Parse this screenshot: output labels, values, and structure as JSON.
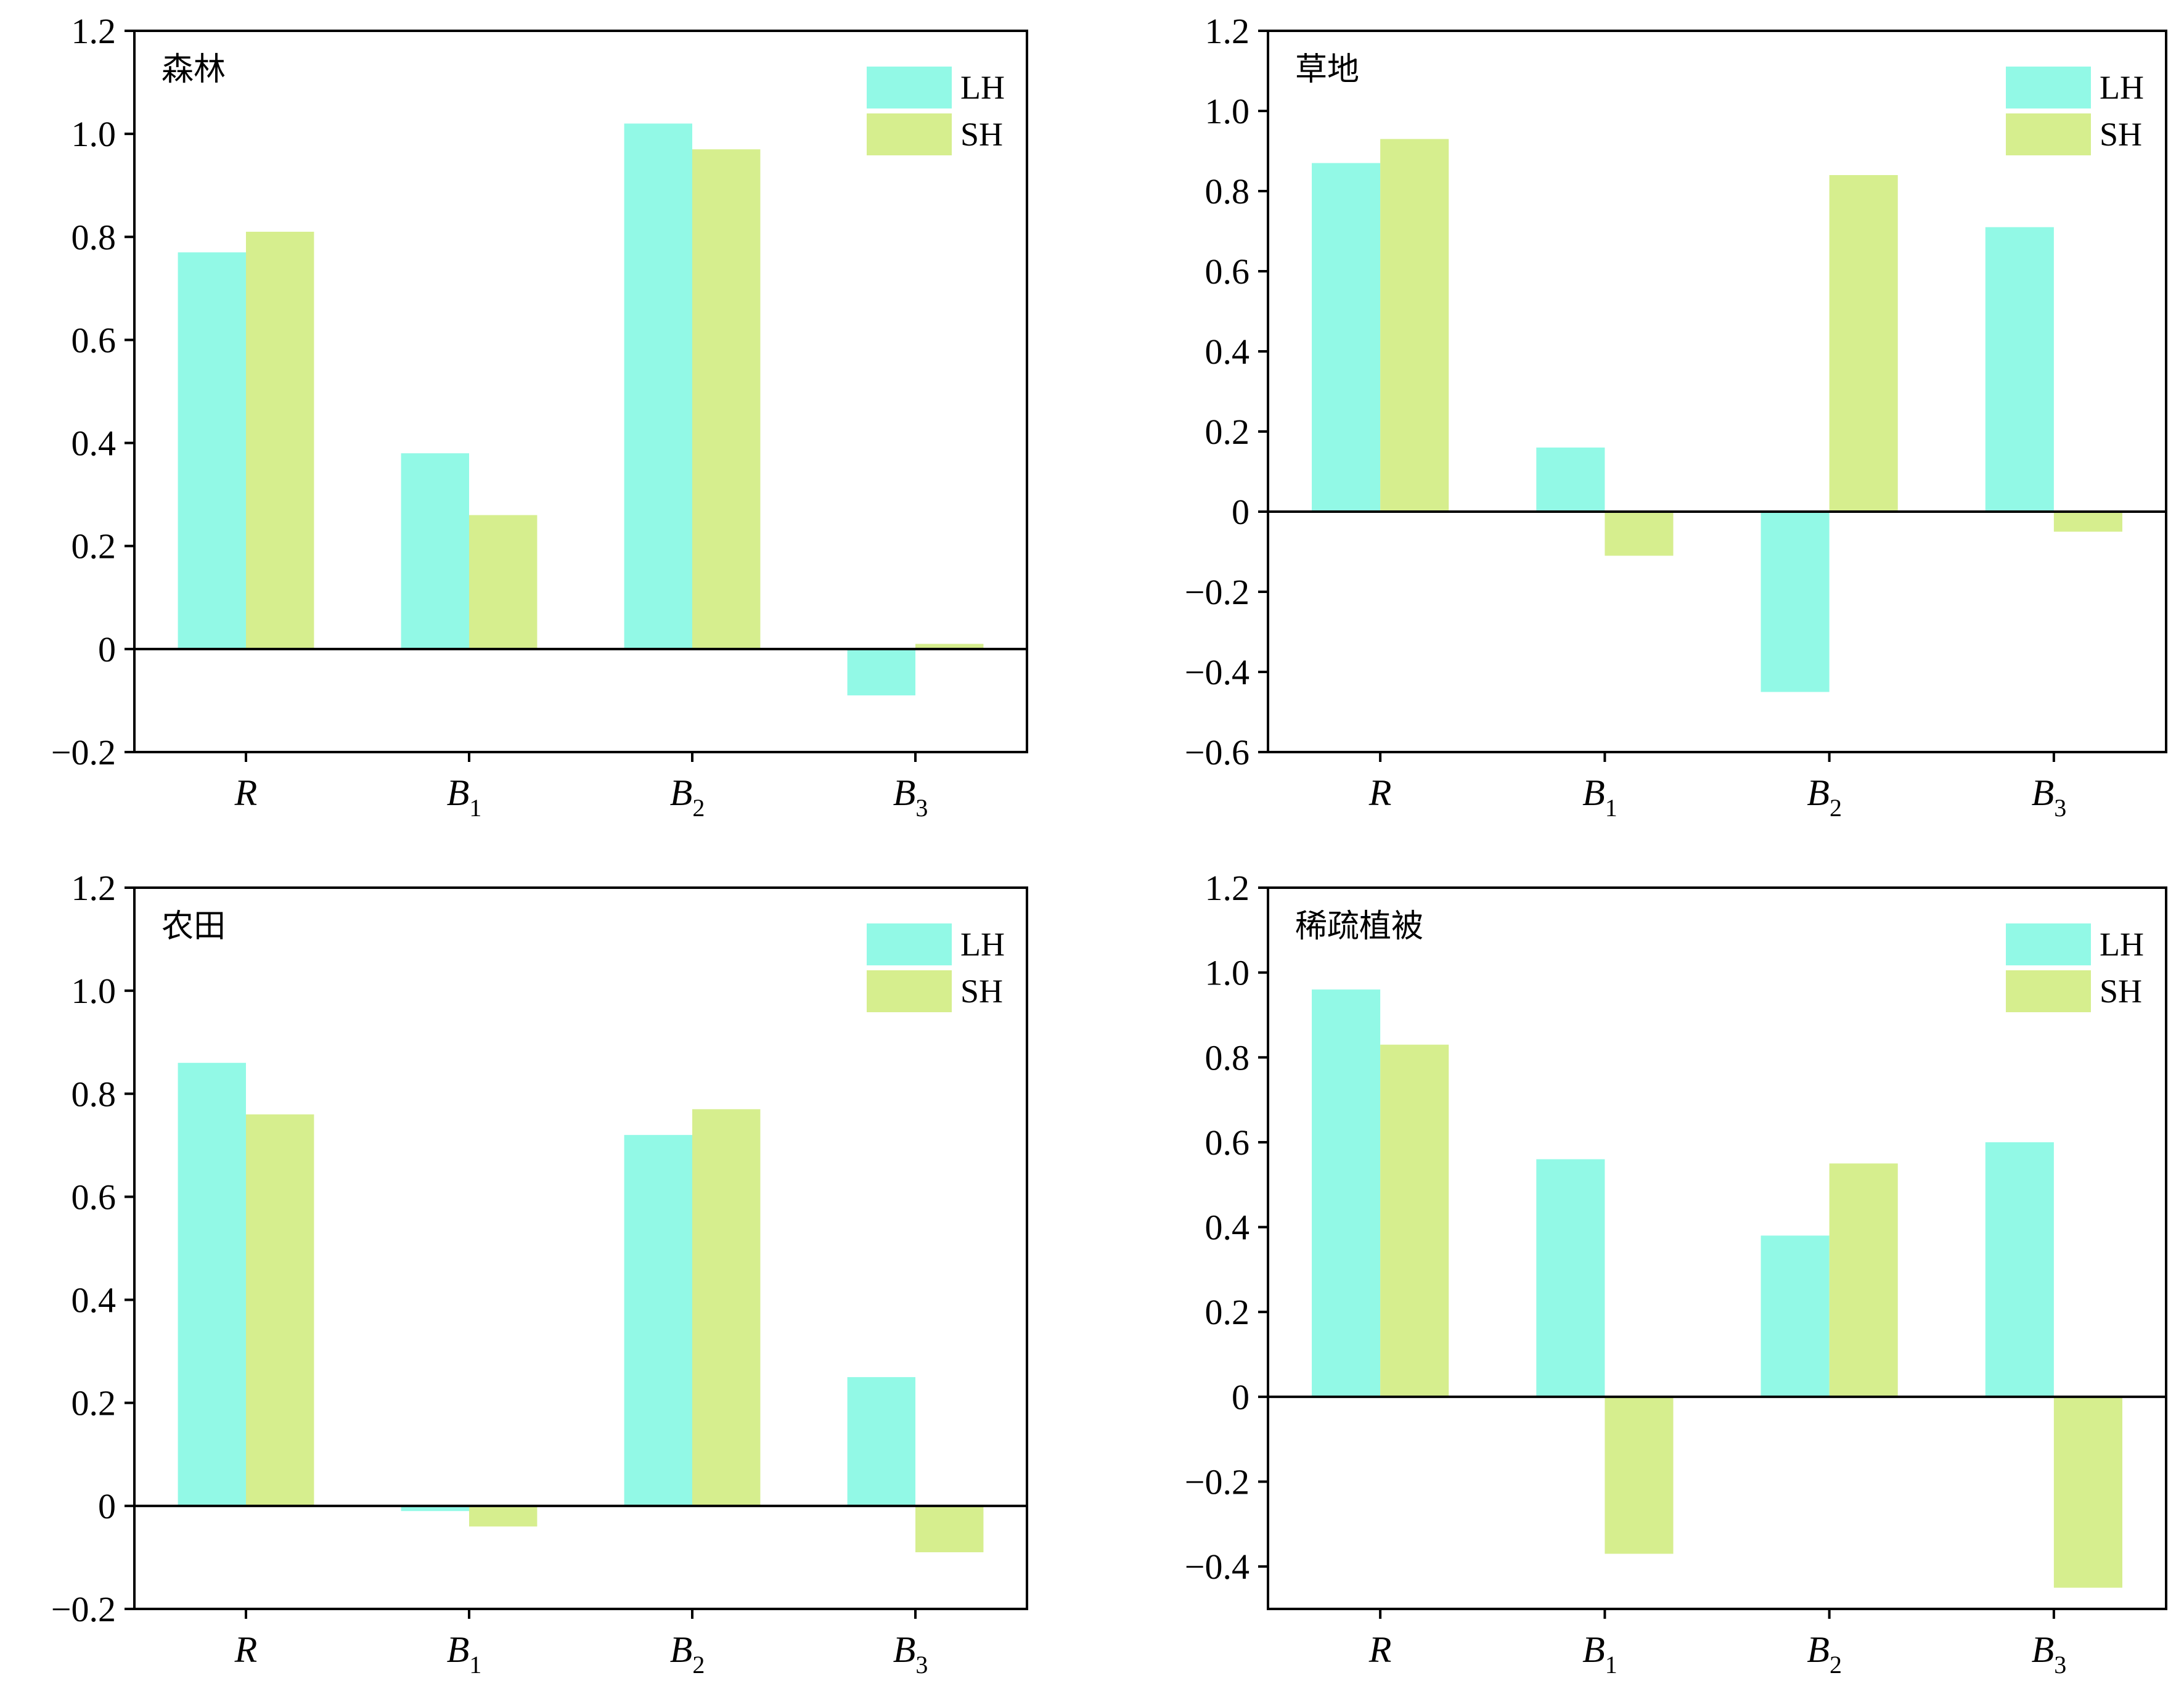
{
  "chart_data": [
    {
      "type": "bar",
      "title": "森林",
      "categories": [
        {
          "base": "R",
          "sub": ""
        },
        {
          "base": "B",
          "sub": "1"
        },
        {
          "base": "B",
          "sub": "2"
        },
        {
          "base": "B",
          "sub": "3"
        }
      ],
      "series": [
        {
          "name": "LH",
          "color": "#92F9E6",
          "values": [
            0.77,
            0.38,
            1.02,
            -0.09
          ]
        },
        {
          "name": "SH",
          "color": "#D6EE8E",
          "values": [
            0.81,
            0.26,
            0.97,
            0.01
          ]
        }
      ],
      "ylim": [
        -0.2,
        1.2
      ],
      "yticks": [
        -0.2,
        0,
        0.2,
        0.4,
        0.6,
        0.8,
        1.0,
        1.2
      ],
      "ytick_labels": [
        "−0.2",
        "0",
        "0.2",
        "0.4",
        "0.6",
        "0.8",
        "1.0",
        "1.2"
      ],
      "legend": "top-right",
      "grid": false
    },
    {
      "type": "bar",
      "title": "草地",
      "categories": [
        {
          "base": "R",
          "sub": ""
        },
        {
          "base": "B",
          "sub": "1"
        },
        {
          "base": "B",
          "sub": "2"
        },
        {
          "base": "B",
          "sub": "3"
        }
      ],
      "series": [
        {
          "name": "LH",
          "color": "#92F9E6",
          "values": [
            0.87,
            0.16,
            -0.45,
            0.71
          ]
        },
        {
          "name": "SH",
          "color": "#D6EE8E",
          "values": [
            0.93,
            -0.11,
            0.84,
            -0.05
          ]
        }
      ],
      "ylim": [
        -0.6,
        1.2
      ],
      "yticks": [
        -0.6,
        -0.4,
        -0.2,
        0,
        0.2,
        0.4,
        0.6,
        0.8,
        1.0,
        1.2
      ],
      "ytick_labels": [
        "−0.6",
        "−0.4",
        "−0.2",
        "0",
        "0.2",
        "0.4",
        "0.6",
        "0.8",
        "1.0",
        "1.2"
      ],
      "legend": "top-right",
      "grid": false
    },
    {
      "type": "bar",
      "title": "农田",
      "categories": [
        {
          "base": "R",
          "sub": ""
        },
        {
          "base": "B",
          "sub": "1"
        },
        {
          "base": "B",
          "sub": "2"
        },
        {
          "base": "B",
          "sub": "3"
        }
      ],
      "series": [
        {
          "name": "LH",
          "color": "#92F9E6",
          "values": [
            0.86,
            -0.01,
            0.72,
            0.25
          ]
        },
        {
          "name": "SH",
          "color": "#D6EE8E",
          "values": [
            0.76,
            -0.04,
            0.77,
            -0.09
          ]
        }
      ],
      "ylim": [
        -0.2,
        1.2
      ],
      "yticks": [
        -0.2,
        0,
        0.2,
        0.4,
        0.6,
        0.8,
        1.0,
        1.2
      ],
      "ytick_labels": [
        "−0.2",
        "0",
        "0.2",
        "0.4",
        "0.6",
        "0.8",
        "1.0",
        "1.2"
      ],
      "legend": "top-right",
      "grid": false
    },
    {
      "type": "bar",
      "title": "稀疏植被",
      "categories": [
        {
          "base": "R",
          "sub": ""
        },
        {
          "base": "B",
          "sub": "1"
        },
        {
          "base": "B",
          "sub": "2"
        },
        {
          "base": "B",
          "sub": "3"
        }
      ],
      "series": [
        {
          "name": "LH",
          "color": "#92F9E6",
          "values": [
            0.96,
            0.56,
            0.38,
            0.6
          ]
        },
        {
          "name": "SH",
          "color": "#D6EE8E",
          "values": [
            0.83,
            -0.37,
            0.55,
            -0.45
          ]
        }
      ],
      "ylim": [
        -0.5,
        1.2
      ],
      "yticks": [
        -0.4,
        -0.2,
        0,
        0.2,
        0.4,
        0.6,
        0.8,
        1.0,
        1.2
      ],
      "ytick_labels": [
        "−0.4",
        "−0.2",
        "0",
        "0.2",
        "0.4",
        "0.6",
        "0.8",
        "1.0",
        "1.2"
      ],
      "legend": "top-right",
      "grid": false
    }
  ]
}
